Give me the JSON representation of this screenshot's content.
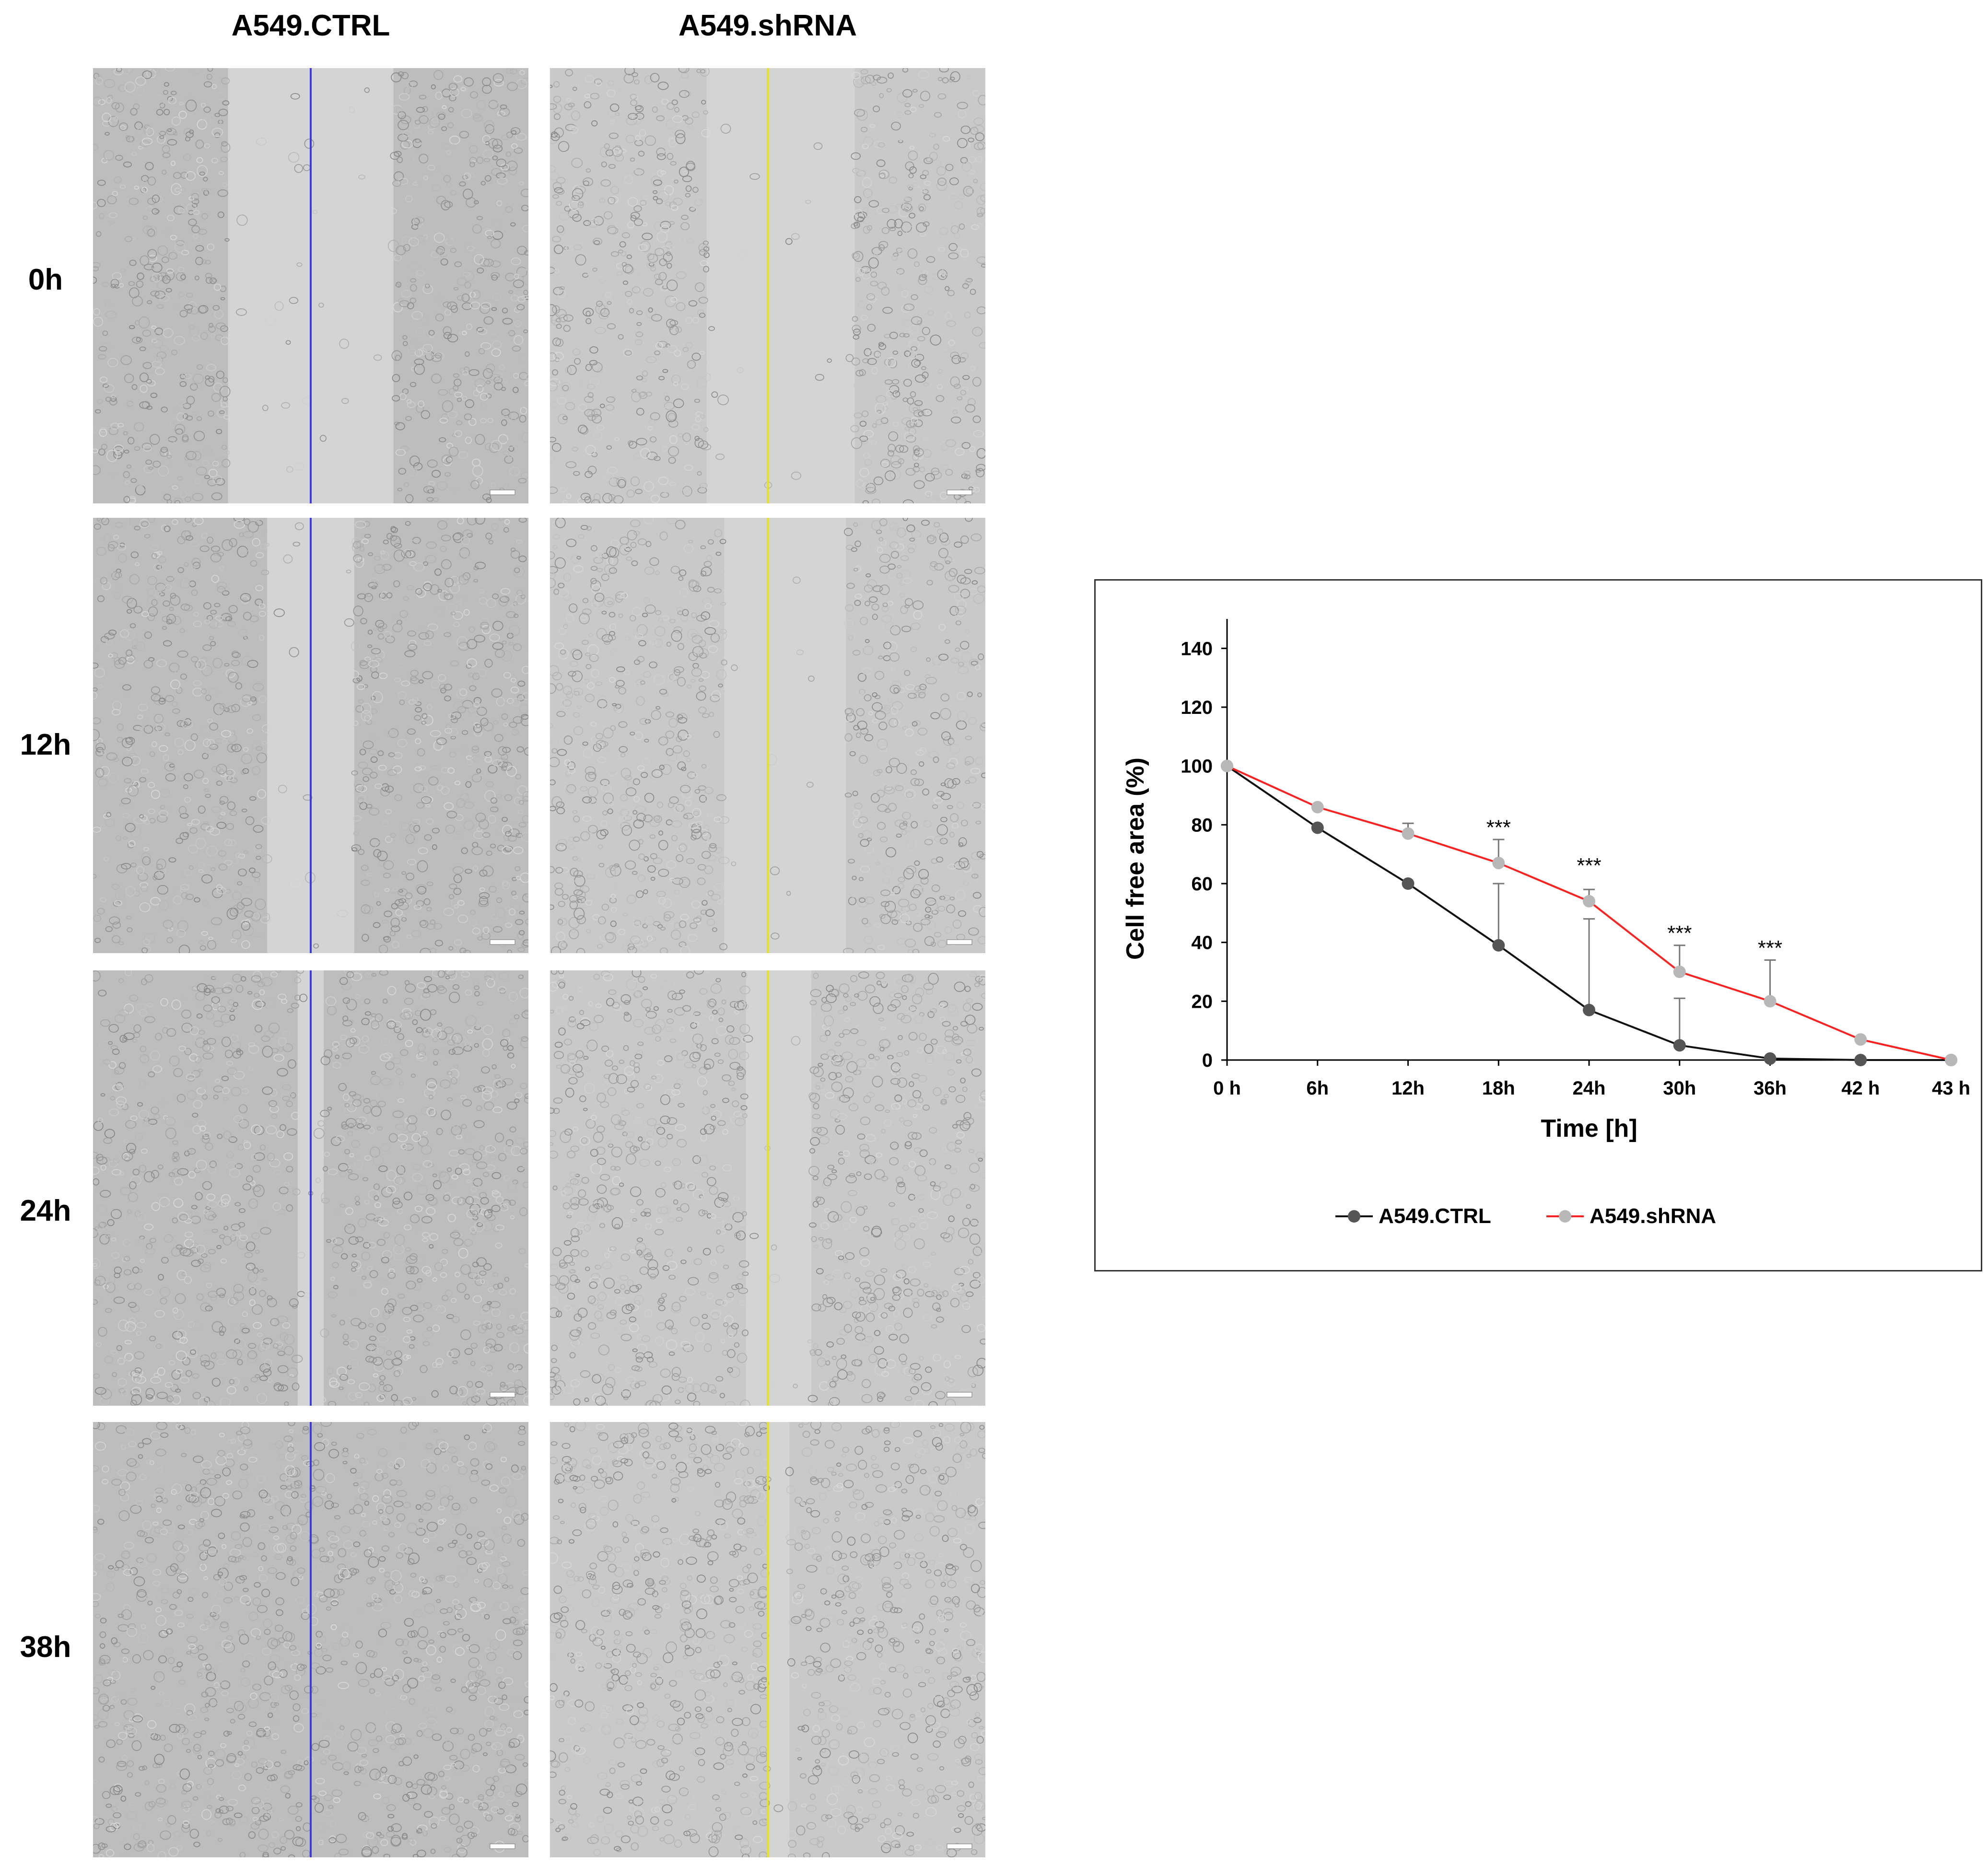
{
  "panels": {
    "column_labels": [
      "A549.CTRL",
      "A549.shRNA"
    ],
    "row_labels": [
      "0h",
      "12h",
      "24h",
      "38h"
    ],
    "line_colors": {
      "ctrl": "#3b3bd8",
      "shrna": "#e6e21a"
    }
  },
  "chart_data": {
    "type": "line",
    "title": "",
    "xlabel": "Time [h]",
    "ylabel": "Cell free area (%)",
    "categories": [
      "0 h",
      "6h",
      "12h",
      "18h",
      "24h",
      "30h",
      "36h",
      "42 h",
      "43 h"
    ],
    "ylim": [
      0,
      150
    ],
    "yticks": [
      0,
      20,
      40,
      60,
      80,
      100,
      120,
      140
    ],
    "grid": false,
    "legend": "bottom",
    "series": [
      {
        "name": "A549.CTRL",
        "color": "#555555",
        "line_color": "#111111",
        "values": [
          100,
          79,
          60,
          39,
          17,
          5,
          0.5,
          0,
          0
        ],
        "errors": [
          0,
          0,
          0,
          21,
          31,
          16,
          0,
          0,
          0
        ]
      },
      {
        "name": "A549.shRNA",
        "color": "#b8b8b8",
        "line_color": "#ff2020",
        "values": [
          100,
          86,
          77,
          67,
          54,
          30,
          20,
          7,
          0
        ],
        "errors": [
          0,
          0,
          3.5,
          8,
          4,
          9,
          14,
          0,
          0
        ]
      }
    ],
    "annotations": [
      {
        "label": "***",
        "x": "18h",
        "y": 80
      },
      {
        "label": "***",
        "x": "24h",
        "y": 67
      },
      {
        "label": "***",
        "x": "30h",
        "y": 44
      },
      {
        "label": "***",
        "x": "36h",
        "y": 39
      }
    ]
  }
}
